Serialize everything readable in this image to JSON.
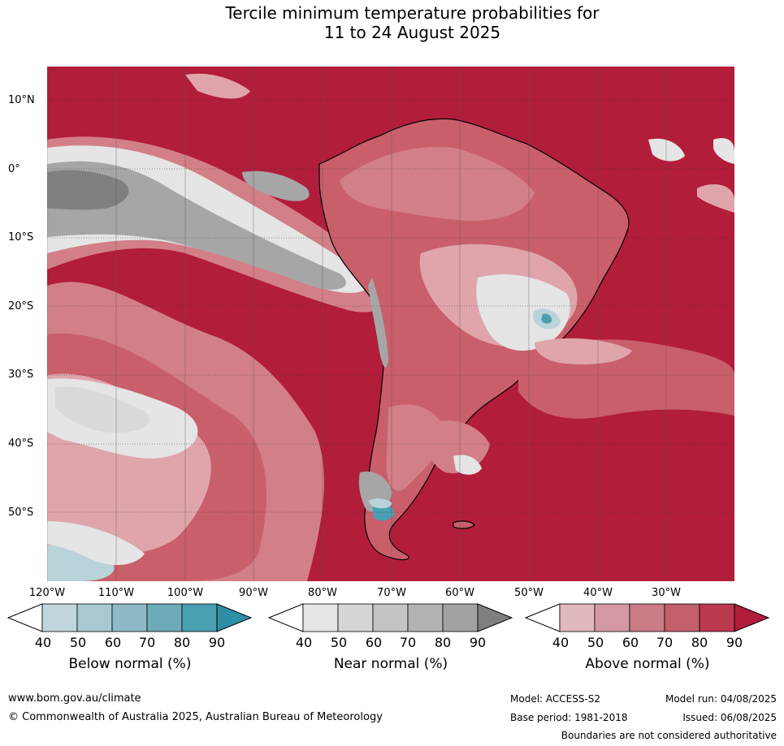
{
  "title": {
    "line1": "Tercile minimum temperature probabilities for",
    "line2": "11 to 24 August 2025"
  },
  "map": {
    "lat_labels": [
      "10°N",
      "0°",
      "10°S",
      "20°S",
      "30°S",
      "40°S",
      "50°S"
    ],
    "lon_labels": [
      "120°W",
      "110°W",
      "100°W",
      "90°W",
      "80°W",
      "70°W",
      "60°W",
      "50°W",
      "40°W",
      "30°W"
    ],
    "colors": {
      "above_90": "#b21d3a",
      "above_80": "#c13c52",
      "above_70": "#c95f6b",
      "above_60": "#d37f87",
      "above_50": "#dfa5ab",
      "near_40": "#e5e5e5",
      "near_60": "#c9c9c9",
      "near_80": "#a6a6a6",
      "near_90": "#7f7f7f",
      "below_50": "#b9d3da",
      "below_80": "#4a9fb1"
    }
  },
  "colorbars": [
    {
      "name": "below",
      "title": "Below normal (%)",
      "ticks": [
        "40",
        "50",
        "60",
        "70",
        "80",
        "90"
      ],
      "colors": [
        "#c0d6dc",
        "#a8c9d1",
        "#8fb9c6",
        "#6eabb9",
        "#4a9fb1",
        "#2e8ea5"
      ]
    },
    {
      "name": "near",
      "title": "Near normal (%)",
      "ticks": [
        "40",
        "50",
        "60",
        "70",
        "80",
        "90"
      ],
      "colors": [
        "#e6e6e6",
        "#d6d6d6",
        "#c4c4c4",
        "#b3b3b3",
        "#a2a2a2",
        "#7f7f7f"
      ]
    },
    {
      "name": "above",
      "title": "Above normal (%)",
      "ticks": [
        "40",
        "50",
        "60",
        "70",
        "80",
        "90"
      ],
      "colors": [
        "#e0b8bd",
        "#d59aa1",
        "#cb7c86",
        "#c35e6b",
        "#bb3a4f",
        "#b21d3a"
      ]
    }
  ],
  "footer": {
    "website": "www.bom.gov.au/climate",
    "copyright": "© Commonwealth of Australia 2025, Australian Bureau of Meteorology",
    "model": "Model: ACCESS-S2",
    "model_run": "Model run: 04/08/2025",
    "base_period": "Base period: 1981-2018",
    "issued": "Issued: 06/08/2025",
    "disclaimer": "Boundaries are not considered authoritative"
  }
}
